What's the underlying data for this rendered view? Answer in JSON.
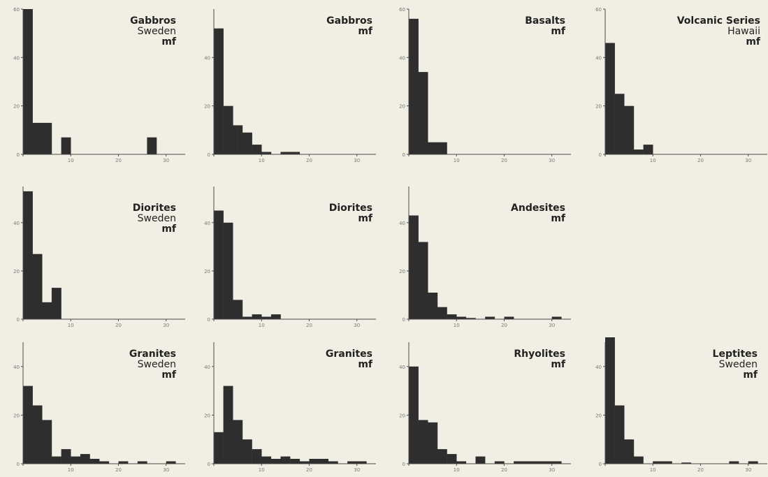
{
  "chart_data": [
    {
      "type": "bar",
      "title": [
        "Gabbros",
        "Sweden",
        "mf"
      ],
      "bin_width": 2,
      "bin_start": 0,
      "values": [
        60,
        13,
        13,
        0,
        7,
        0,
        0,
        0,
        0,
        0,
        0,
        0,
        0,
        7,
        0,
        0
      ],
      "xlim": [
        0,
        34
      ],
      "ylim": [
        0,
        60
      ],
      "xticks": [
        "0",
        "10",
        "20",
        "30"
      ],
      "yticks": [
        "0",
        "20",
        "40",
        "60"
      ]
    },
    {
      "type": "bar",
      "title": [
        "Gabbros",
        "mf"
      ],
      "bin_width": 1,
      "bin_start": 0,
      "values": [
        52,
        52,
        20,
        20,
        12,
        12,
        9,
        9,
        4,
        4,
        1,
        1,
        0,
        0,
        1,
        1,
        1,
        1
      ],
      "xlim": [
        0,
        34
      ],
      "ylim": [
        0,
        60
      ],
      "xticks": [
        "0",
        "10",
        "20",
        "30"
      ],
      "yticks": [
        "0",
        "20",
        "40"
      ]
    },
    {
      "type": "bar",
      "title": [
        "Basalts",
        "mf"
      ],
      "bin_width": 2,
      "bin_start": 0,
      "values": [
        56,
        34,
        5,
        5
      ],
      "xlim": [
        0,
        34
      ],
      "ylim": [
        0,
        60
      ],
      "xticks": [
        "0",
        "10",
        "20",
        "30"
      ],
      "yticks": [
        "0",
        "20",
        "40",
        "60"
      ]
    },
    {
      "type": "bar",
      "title": [
        "Volcanic Series",
        "Hawaii",
        "mf"
      ],
      "bin_width": 2,
      "bin_start": 0,
      "values": [
        46,
        25,
        20,
        2,
        4
      ],
      "xlim": [
        0,
        34
      ],
      "ylim": [
        0,
        60
      ],
      "xticks": [
        "0",
        "10",
        "20",
        "30"
      ],
      "yticks": [
        "0",
        "20",
        "40",
        "60"
      ]
    },
    {
      "type": "bar",
      "title": [
        "Diorites",
        "Sweden",
        "mf"
      ],
      "bin_width": 2,
      "bin_start": 0,
      "values": [
        53,
        27,
        7,
        13
      ],
      "xlim": [
        0,
        34
      ],
      "ylim": [
        0,
        55
      ],
      "xticks": [
        "0",
        "10",
        "20",
        "30"
      ],
      "yticks": [
        "0",
        "20",
        "40"
      ]
    },
    {
      "type": "bar",
      "title": [
        "Diorites",
        "mf"
      ],
      "bin_width": 2,
      "bin_start": 0,
      "values": [
        45,
        40,
        8,
        1,
        2,
        1,
        2
      ],
      "xlim": [
        0,
        34
      ],
      "ylim": [
        0,
        55
      ],
      "xticks": [
        "0",
        "10",
        "20",
        "30"
      ],
      "yticks": [
        "0",
        "20",
        "40"
      ]
    },
    {
      "type": "bar",
      "title": [
        "Andesites",
        "mf"
      ],
      "bin_width": 2,
      "bin_start": 0,
      "values": [
        43,
        32,
        11,
        5,
        2,
        1,
        0.5,
        0,
        1,
        0,
        1,
        0,
        0,
        0,
        0,
        1
      ],
      "xlim": [
        0,
        34
      ],
      "ylim": [
        0,
        55
      ],
      "xticks": [
        "0",
        "10",
        "20",
        "30"
      ],
      "yticks": [
        "0",
        "20",
        "40"
      ]
    },
    {
      "type": "bar",
      "title": [
        "Granites",
        "Sweden",
        "mf"
      ],
      "bin_width": 2,
      "bin_start": 0,
      "values": [
        32,
        24,
        18,
        3,
        6,
        3,
        4,
        2,
        1,
        0,
        1,
        0,
        1,
        0,
        0,
        1
      ],
      "xlim": [
        0,
        34
      ],
      "ylim": [
        0,
        50
      ],
      "xticks": [
        "0",
        "10",
        "20",
        "30"
      ],
      "yticks": [
        "0",
        "20",
        "40"
      ]
    },
    {
      "type": "bar",
      "title": [
        "Granites",
        "mf"
      ],
      "bin_width": 2,
      "bin_start": 0,
      "values": [
        13,
        32,
        18,
        10,
        6,
        3,
        2,
        3,
        2,
        1,
        2,
        2,
        1,
        0,
        1,
        1
      ],
      "xlim": [
        0,
        34
      ],
      "ylim": [
        0,
        50
      ],
      "xticks": [
        "0",
        "10",
        "20",
        "30"
      ],
      "yticks": [
        "0",
        "20",
        "40"
      ]
    },
    {
      "type": "bar",
      "title": [
        "Rhyolites",
        "mf"
      ],
      "bin_width": 2,
      "bin_start": 0,
      "values": [
        40,
        18,
        17,
        6,
        4,
        1,
        0,
        3,
        0,
        1,
        0,
        1,
        1,
        1,
        1,
        1
      ],
      "xlim": [
        0,
        34
      ],
      "ylim": [
        0,
        50
      ],
      "xticks": [
        "0",
        "10",
        "20",
        "30"
      ],
      "yticks": [
        "0",
        "20",
        "40"
      ]
    },
    {
      "type": "bar",
      "title": [
        "Leptites",
        "Sweden",
        "mf"
      ],
      "bin_width": 2,
      "bin_start": 0,
      "values": [
        52,
        24,
        10,
        3,
        0,
        1,
        1,
        0,
        0.5,
        0,
        0,
        0,
        0,
        1,
        0,
        1
      ],
      "xlim": [
        0,
        34
      ],
      "ylim": [
        0,
        50
      ],
      "xticks": [
        "0",
        "10",
        "20",
        "30"
      ],
      "yticks": [
        "0",
        "20",
        "40"
      ]
    }
  ]
}
